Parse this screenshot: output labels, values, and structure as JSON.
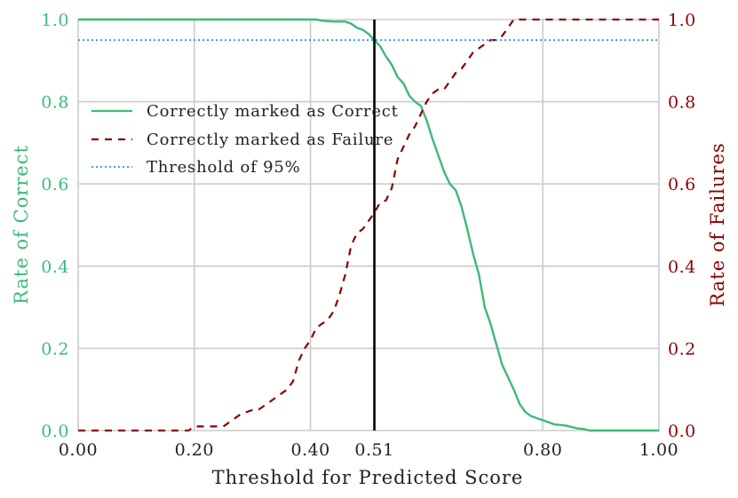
{
  "chart_data": {
    "type": "line",
    "xlabel": "Threshold for Predicted Score",
    "ylabel_left": "Rate of Correct",
    "ylabel_right": "Rate of Failures",
    "xlim": [
      0.0,
      1.0
    ],
    "ylim_left": [
      0.0,
      1.0
    ],
    "ylim_right": [
      0.0,
      1.0
    ],
    "x_ticks": [
      0.0,
      0.2,
      0.4,
      0.51,
      0.8,
      1.0
    ],
    "x_tick_labels": [
      "0.00",
      "0.20",
      "0.40",
      "0.51",
      "0.80",
      "1.00"
    ],
    "y_ticks_left": [
      0.0,
      0.2,
      0.4,
      0.6,
      0.8,
      1.0
    ],
    "y_tick_labels_left": [
      "0.0",
      "0.2",
      "0.4",
      "0.6",
      "0.8",
      "1.0"
    ],
    "y_ticks_right": [
      0.0,
      0.2,
      0.4,
      0.6,
      0.8,
      1.0
    ],
    "y_tick_labels_right": [
      "0.0",
      "0.2",
      "0.4",
      "0.6",
      "0.8",
      "1.0"
    ],
    "grid": true,
    "legend_position": "upper-left",
    "vertical_line_x": 0.51,
    "colors": {
      "correct": "#3dba78",
      "failure": "#8b0000",
      "threshold": "#1e90ff",
      "vline": "#000000",
      "grid": "#cccccc"
    },
    "series": [
      {
        "name": "Correctly marked as Correct",
        "axis": "left",
        "style": "solid",
        "x": [
          0.0,
          0.1,
          0.2,
          0.3,
          0.41,
          0.42,
          0.44,
          0.46,
          0.47,
          0.48,
          0.49,
          0.5,
          0.51,
          0.52,
          0.53,
          0.54,
          0.55,
          0.56,
          0.57,
          0.58,
          0.59,
          0.6,
          0.61,
          0.62,
          0.63,
          0.64,
          0.65,
          0.66,
          0.67,
          0.68,
          0.69,
          0.7,
          0.71,
          0.72,
          0.73,
          0.74,
          0.75,
          0.76,
          0.77,
          0.78,
          0.79,
          0.8,
          0.82,
          0.84,
          0.86,
          0.87,
          0.88,
          0.9,
          0.92,
          1.0
        ],
        "y": [
          1.0,
          1.0,
          1.0,
          1.0,
          1.0,
          0.997,
          0.995,
          0.995,
          0.99,
          0.98,
          0.975,
          0.965,
          0.95,
          0.935,
          0.91,
          0.89,
          0.86,
          0.845,
          0.815,
          0.8,
          0.79,
          0.755,
          0.71,
          0.67,
          0.63,
          0.6,
          0.585,
          0.545,
          0.49,
          0.43,
          0.38,
          0.3,
          0.26,
          0.21,
          0.16,
          0.13,
          0.1,
          0.065,
          0.045,
          0.035,
          0.03,
          0.025,
          0.015,
          0.012,
          0.005,
          0.004,
          0.0,
          0.0,
          0.0,
          0.0
        ]
      },
      {
        "name": "Correctly marked as Failure",
        "axis": "right",
        "style": "dashed",
        "x": [
          0.0,
          0.1,
          0.19,
          0.2,
          0.23,
          0.25,
          0.27,
          0.28,
          0.3,
          0.31,
          0.32,
          0.33,
          0.34,
          0.35,
          0.36,
          0.37,
          0.38,
          0.39,
          0.4,
          0.41,
          0.42,
          0.43,
          0.44,
          0.45,
          0.46,
          0.47,
          0.48,
          0.49,
          0.5,
          0.51,
          0.52,
          0.53,
          0.54,
          0.55,
          0.56,
          0.57,
          0.58,
          0.59,
          0.6,
          0.61,
          0.62,
          0.63,
          0.64,
          0.65,
          0.66,
          0.67,
          0.68,
          0.69,
          0.7,
          0.71,
          0.72,
          0.73,
          0.74,
          0.75,
          0.8,
          0.9,
          1.0
        ],
        "y": [
          0.0,
          0.0,
          0.0,
          0.01,
          0.01,
          0.01,
          0.03,
          0.04,
          0.05,
          0.05,
          0.06,
          0.07,
          0.08,
          0.09,
          0.1,
          0.12,
          0.17,
          0.2,
          0.22,
          0.25,
          0.26,
          0.27,
          0.29,
          0.33,
          0.38,
          0.45,
          0.48,
          0.49,
          0.51,
          0.53,
          0.555,
          0.56,
          0.59,
          0.66,
          0.69,
          0.72,
          0.74,
          0.77,
          0.8,
          0.82,
          0.83,
          0.83,
          0.85,
          0.87,
          0.88,
          0.9,
          0.92,
          0.93,
          0.94,
          0.95,
          0.95,
          0.96,
          0.98,
          1.0,
          1.0,
          1.0,
          1.0
        ]
      },
      {
        "name": "Threshold of 95%",
        "axis": "left",
        "style": "dotted",
        "x": [
          0.0,
          1.0
        ],
        "y": [
          0.95,
          0.95
        ]
      }
    ]
  }
}
